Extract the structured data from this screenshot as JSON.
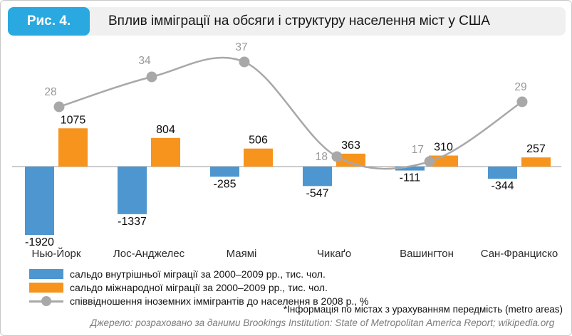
{
  "figure": {
    "badge": "Рис. 4.",
    "title": "Вплив імміграції на обсяги і структуру населення міст у США"
  },
  "colors": {
    "accent": "#29a9e0"
  },
  "chart_data": {
    "type": "bar",
    "title": "Вплив імміграції на обсяги і структуру населення міст у США",
    "categories": [
      "Нью-Йорк",
      "Лос-Анджелес",
      "Маямі",
      "Чикаґо",
      "Вашингтон",
      "Сан-Франциско"
    ],
    "series": [
      {
        "name": "сальдо внутрішньої міграції за 2000–2009 рр., тис. чол.",
        "type": "bar",
        "color": "#4d96cf",
        "values": [
          -1920,
          -1337,
          -285,
          -547,
          -111,
          -344
        ]
      },
      {
        "name": "сальдо міжнародної міграції за 2000–2009 рр., тис. чол.",
        "type": "bar",
        "color": "#f7941e",
        "values": [
          1075,
          804,
          506,
          363,
          310,
          257
        ]
      },
      {
        "name": "співвідношення іноземних іммігрантів до населення в 2008 р., %",
        "type": "line",
        "color": "#a8a8a8",
        "values": [
          28,
          34,
          37,
          18,
          17,
          29
        ]
      }
    ],
    "legend_position": "bottom-left",
    "grid": false,
    "baseline": 0
  },
  "footnote": "*Інформація по містах з урахуванням передмість (metro areas)",
  "source": "Джерело: розраховано за даними Brookings Institution: State of Metropolitan America Report; wikipedia.org"
}
